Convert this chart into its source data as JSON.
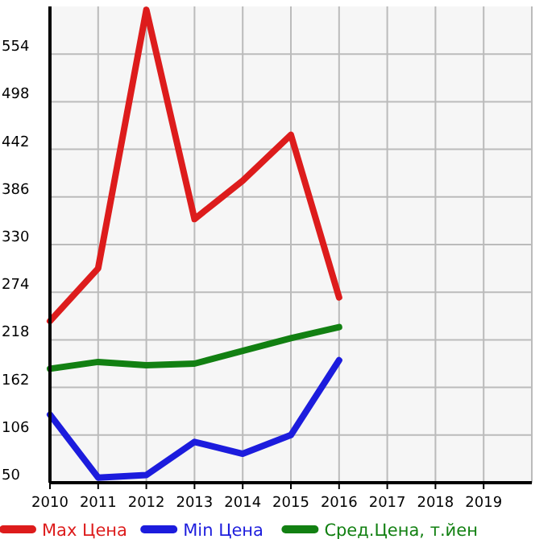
{
  "chart_data": {
    "type": "line",
    "x": [
      2010,
      2011,
      2012,
      2013,
      2014,
      2015,
      2016
    ],
    "series": [
      {
        "name": "Max Цена",
        "color": "#dd1c1c",
        "values": [
          240,
          302,
          606,
          360,
          405,
          459,
          268
        ]
      },
      {
        "name": "Min Цена",
        "color": "#1c1cdd",
        "values": [
          130,
          56,
          59,
          98,
          84,
          106,
          194
        ]
      },
      {
        "name": "Сред.Цена, т.йен",
        "color": "#128012",
        "values": [
          184,
          192,
          188,
          190,
          205,
          220,
          233
        ]
      }
    ],
    "xlim": [
      2010,
      2020
    ],
    "xticks": [
      2010,
      2011,
      2012,
      2013,
      2014,
      2015,
      2016,
      2017,
      2018,
      2019
    ],
    "ylim": [
      50,
      610
    ],
    "yticks": [
      50,
      106,
      162,
      218,
      274,
      330,
      386,
      442,
      498,
      554
    ],
    "grid": true,
    "legend": "bottom",
    "marker": "none",
    "line_style": "solid"
  }
}
